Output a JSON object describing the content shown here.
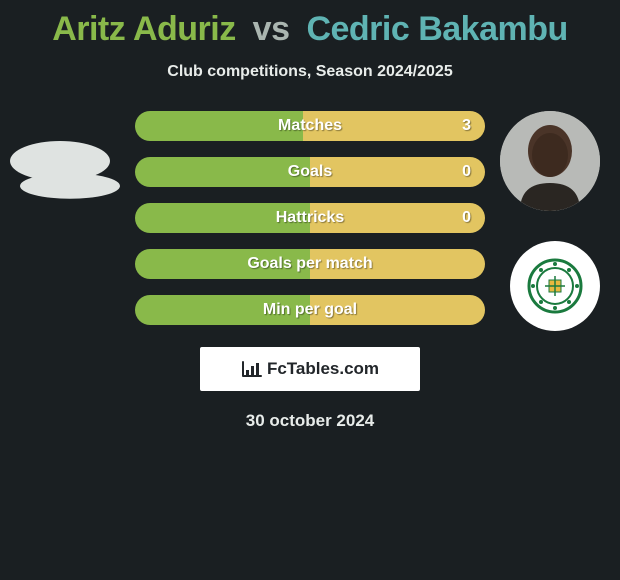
{
  "title": {
    "player1": "Aritz Aduriz",
    "vs": "vs",
    "player2": "Cedric Bakambu"
  },
  "subtitle": "Club competitions, Season 2024/2025",
  "colors": {
    "player1": "#89b94a",
    "player2": "#e2c561",
    "player2_title": "#5fb3b3",
    "background": "#1a1f22",
    "text_light": "#e8ecea"
  },
  "bars": [
    {
      "label": "Matches",
      "left_pct": 48,
      "right_pct": 52,
      "left_val": "",
      "right_val": "3"
    },
    {
      "label": "Goals",
      "left_pct": 50,
      "right_pct": 50,
      "left_val": "",
      "right_val": "0"
    },
    {
      "label": "Hattricks",
      "left_pct": 50,
      "right_pct": 50,
      "left_val": "",
      "right_val": "0"
    },
    {
      "label": "Goals per match",
      "left_pct": 50,
      "right_pct": 50,
      "left_val": "",
      "right_val": ""
    },
    {
      "label": "Min per goal",
      "left_pct": 50,
      "right_pct": 50,
      "left_val": "",
      "right_val": ""
    }
  ],
  "watermark": "FcTables.com",
  "date": "30 october 2024",
  "badge_right_color": "#1a7a3e"
}
